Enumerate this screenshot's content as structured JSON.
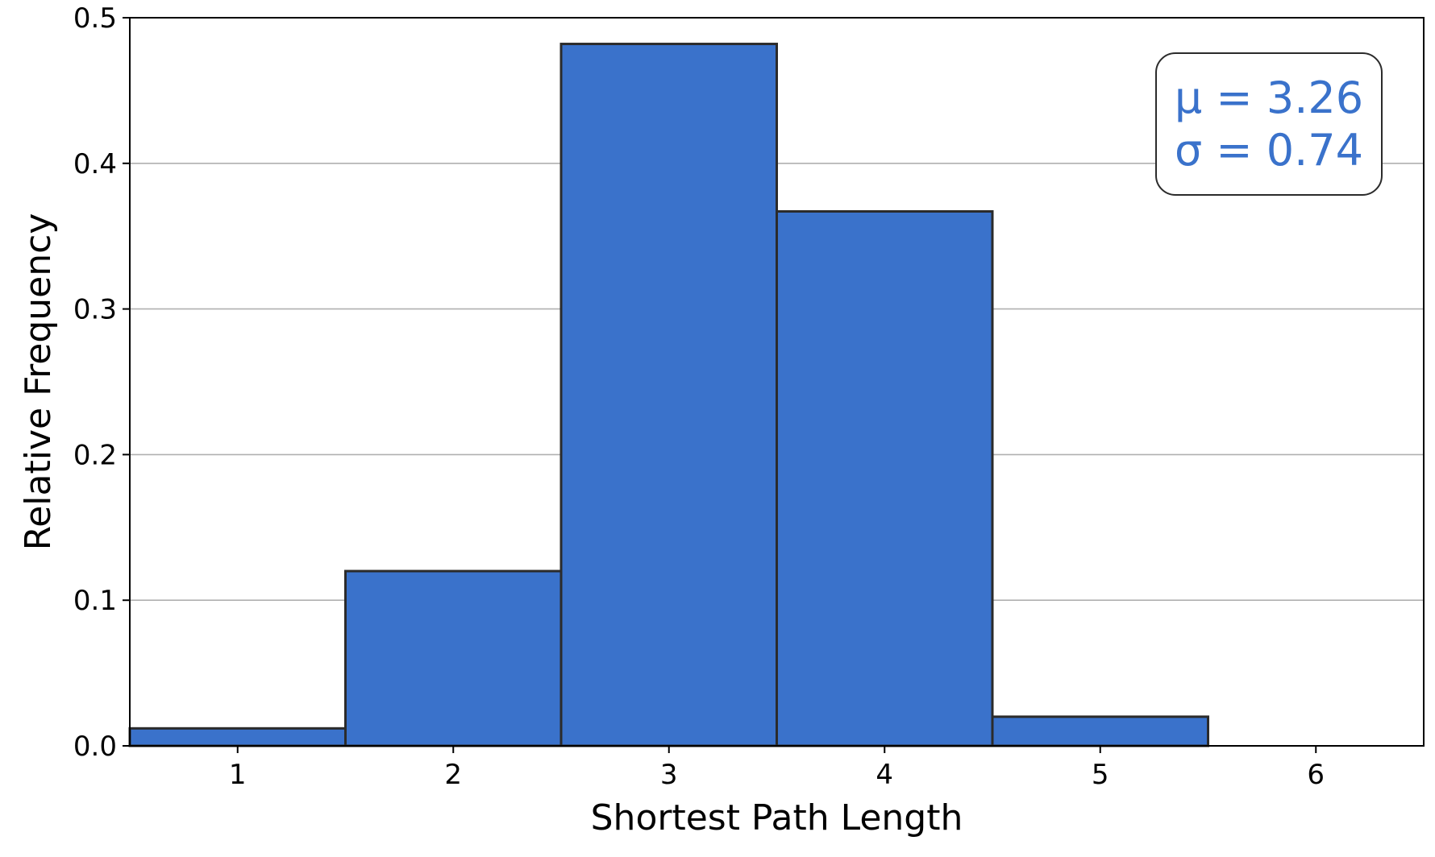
{
  "chart_data": {
    "type": "bar",
    "subtype": "histogram",
    "title": "",
    "xlabel": "Shortest Path Length",
    "ylabel": "Relative Frequency",
    "categories": [
      "1",
      "2",
      "3",
      "4",
      "5",
      "6"
    ],
    "x": [
      1,
      2,
      3,
      4,
      5,
      6
    ],
    "values": [
      0.012,
      0.12,
      0.482,
      0.367,
      0.02,
      0.0
    ],
    "xlim": [
      0.5,
      6.5
    ],
    "ylim": [
      0,
      0.5
    ],
    "yticks": [
      "0.0",
      "0.1",
      "0.2",
      "0.3",
      "0.4",
      "0.5"
    ],
    "ytick_values": [
      0,
      0.1,
      0.2,
      0.3,
      0.4,
      0.5
    ],
    "xticks": [
      "1",
      "2",
      "3",
      "4",
      "5",
      "6"
    ],
    "grid": "horizontal",
    "bar_color": "#3a72cb",
    "edge_color": "#2b2b2b",
    "annotation": {
      "mean_line": "μ = 3.26",
      "std_line": "σ = 0.74",
      "color": "#3a72cb",
      "placement": "top-right"
    }
  }
}
